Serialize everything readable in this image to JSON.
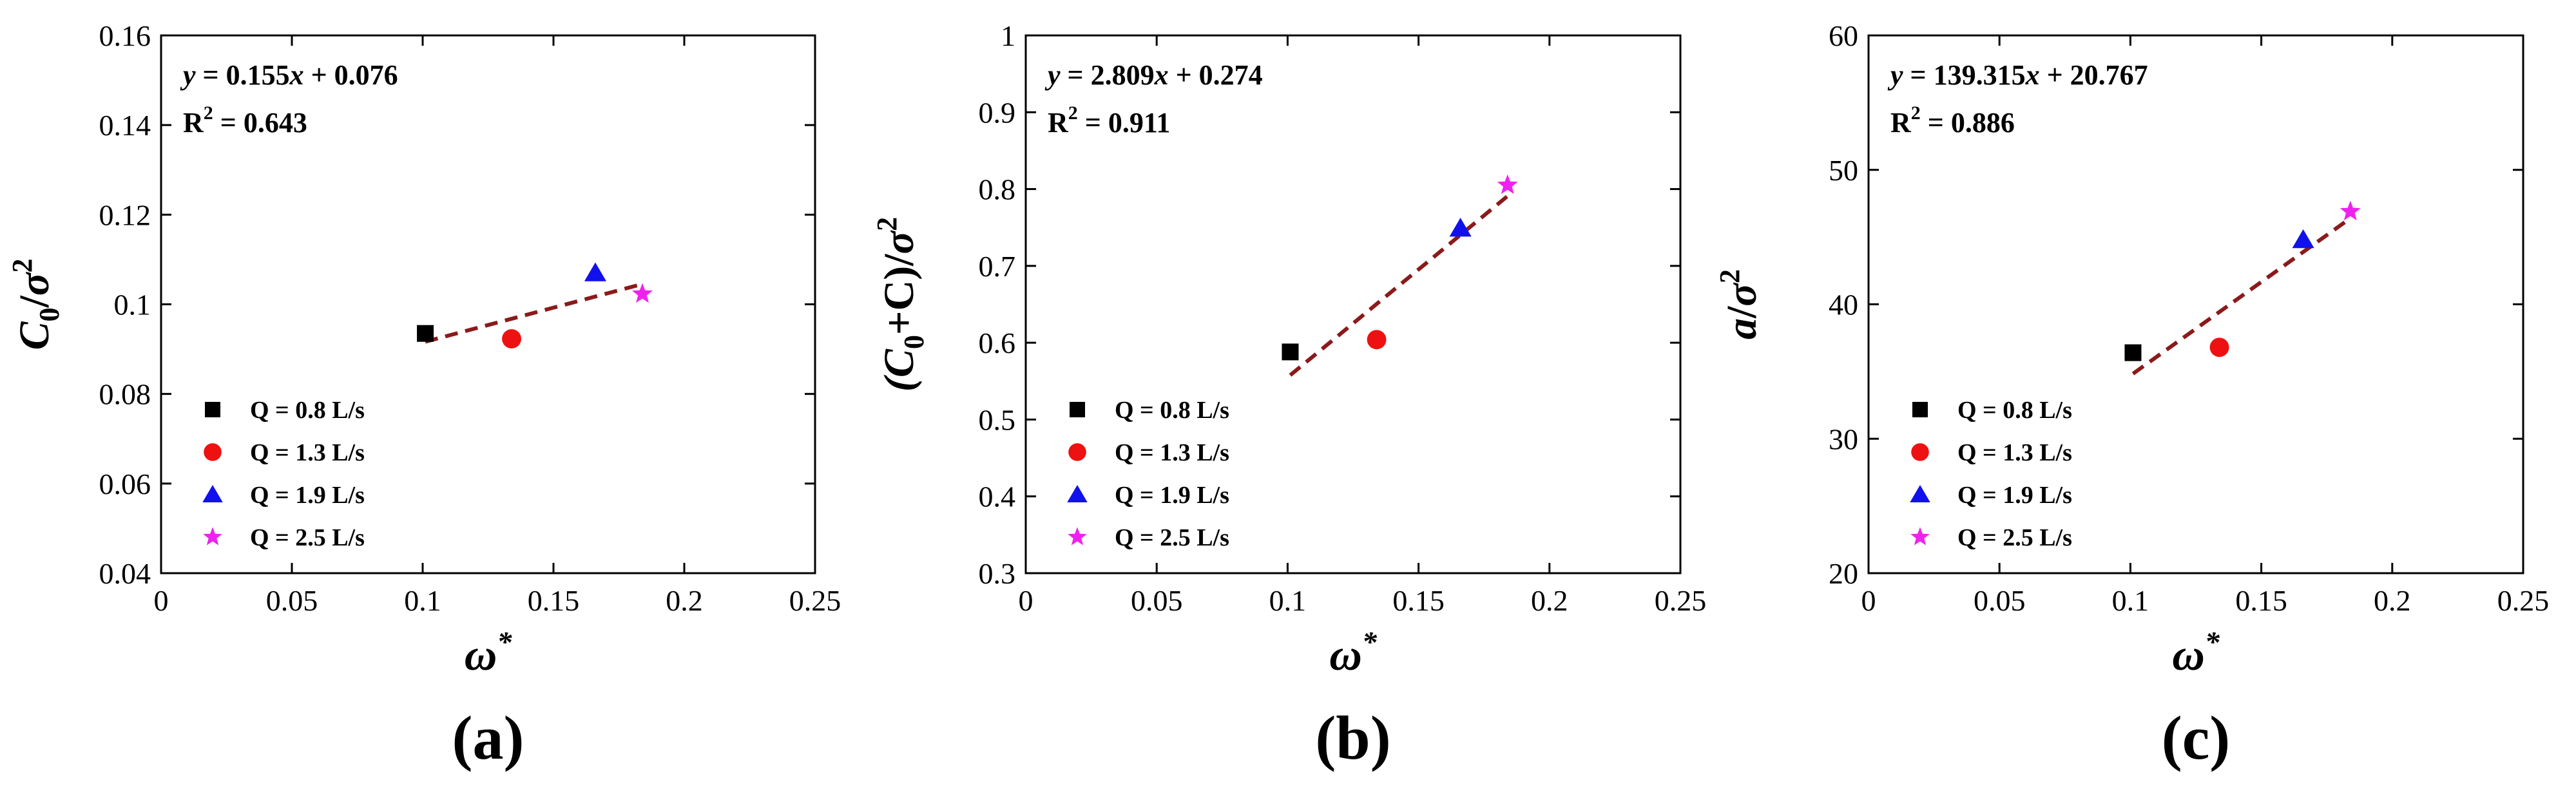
{
  "chart_data": [
    {
      "type": "scatter",
      "panel_label": "(a)",
      "xlabel": "ω*",
      "ylabel": "C0/σ2",
      "ylabel_parts": [
        "C",
        "0",
        "/",
        "σ",
        "2"
      ],
      "xlim": [
        0,
        0.25
      ],
      "ylim": [
        0.04,
        0.16
      ],
      "xticks": [
        0,
        0.05,
        0.1,
        0.15,
        0.2,
        0.25
      ],
      "xtick_labels": [
        "0",
        "0.05",
        "0.1",
        "0.15",
        "0.2",
        "0.25"
      ],
      "yticks": [
        0.04,
        0.06,
        0.08,
        0.1,
        0.12,
        0.14,
        0.16
      ],
      "ytick_labels": [
        "0.04",
        "0.06",
        "0.08",
        "0.1",
        "0.12",
        "0.14",
        "0.16"
      ],
      "equation": "y = 0.155x + 0.076",
      "r2_label": "R",
      "r2_sup": "2",
      "r2_value": " = 0.643",
      "fit": {
        "slope": 0.155,
        "intercept": 0.076,
        "x_range": [
          0.101,
          0.184
        ]
      },
      "series": [
        {
          "name": "Q = 0.8 L/s",
          "marker": "square",
          "color": "#000000",
          "x": 0.101,
          "y": 0.0935
        },
        {
          "name": "Q = 1.3 L/s",
          "marker": "circle",
          "color": "#ee1111",
          "x": 0.134,
          "y": 0.0923
        },
        {
          "name": "Q = 1.9 L/s",
          "marker": "triangle",
          "color": "#1111ee",
          "x": 0.166,
          "y": 0.107
        },
        {
          "name": "Q = 2.5 L/s",
          "marker": "star",
          "color": "#ee22ee",
          "x": 0.184,
          "y": 0.1023
        }
      ]
    },
    {
      "type": "scatter",
      "panel_label": "(b)",
      "xlabel": "ω*",
      "ylabel": "(C0+C)/σ2",
      "ylabel_parts": [
        "(C",
        "0",
        "+C)/",
        "σ",
        "2"
      ],
      "xlim": [
        0,
        0.25
      ],
      "ylim": [
        0.3,
        1.0
      ],
      "xticks": [
        0,
        0.05,
        0.1,
        0.15,
        0.2,
        0.25
      ],
      "xtick_labels": [
        "0",
        "0.05",
        "0.1",
        "0.15",
        "0.2",
        "0.25"
      ],
      "yticks": [
        0.3,
        0.4,
        0.5,
        0.6,
        0.7,
        0.8,
        0.9,
        1.0
      ],
      "ytick_labels": [
        "0.3",
        "0.4",
        "0.5",
        "0.6",
        "0.7",
        "0.8",
        "0.9",
        "1"
      ],
      "equation": "y = 2.809x + 0.274",
      "r2_label": "R",
      "r2_sup": "2",
      "r2_value": " = 0.911",
      "fit": {
        "slope": 2.809,
        "intercept": 0.274,
        "x_range": [
          0.101,
          0.184
        ]
      },
      "series": [
        {
          "name": "Q = 0.8 L/s",
          "marker": "square",
          "color": "#000000",
          "x": 0.101,
          "y": 0.588
        },
        {
          "name": "Q = 1.3 L/s",
          "marker": "circle",
          "color": "#ee1111",
          "x": 0.134,
          "y": 0.604
        },
        {
          "name": "Q = 1.9 L/s",
          "marker": "triangle",
          "color": "#1111ee",
          "x": 0.166,
          "y": 0.749
        },
        {
          "name": "Q = 2.5 L/s",
          "marker": "star",
          "color": "#ee22ee",
          "x": 0.184,
          "y": 0.805
        }
      ]
    },
    {
      "type": "scatter",
      "panel_label": "(c)",
      "xlabel": "ω*",
      "ylabel": "a/σ2",
      "ylabel_parts": [
        "a",
        "",
        "/",
        "σ",
        "2"
      ],
      "xlim": [
        0,
        0.25
      ],
      "ylim": [
        20,
        60
      ],
      "xticks": [
        0,
        0.05,
        0.1,
        0.15,
        0.2,
        0.25
      ],
      "xtick_labels": [
        "0",
        "0.05",
        "0.1",
        "0.15",
        "0.2",
        "0.25"
      ],
      "yticks": [
        20,
        30,
        40,
        50,
        60
      ],
      "ytick_labels": [
        "20",
        "30",
        "40",
        "50",
        "60"
      ],
      "equation": "y = 139.315x + 20.767",
      "r2_label": "R",
      "r2_sup": "2",
      "r2_value": " = 0.886",
      "fit": {
        "slope": 139.315,
        "intercept": 20.767,
        "x_range": [
          0.101,
          0.184
        ]
      },
      "series": [
        {
          "name": "Q = 0.8 L/s",
          "marker": "square",
          "color": "#000000",
          "x": 0.101,
          "y": 36.4
        },
        {
          "name": "Q = 1.3 L/s",
          "marker": "circle",
          "color": "#ee1111",
          "x": 0.134,
          "y": 36.8
        },
        {
          "name": "Q = 1.9 L/s",
          "marker": "triangle",
          "color": "#1111ee",
          "x": 0.166,
          "y": 44.8
        },
        {
          "name": "Q = 2.5 L/s",
          "marker": "star",
          "color": "#ee22ee",
          "x": 0.184,
          "y": 46.9
        }
      ]
    }
  ],
  "fit_line_color": "#8b1a1a"
}
